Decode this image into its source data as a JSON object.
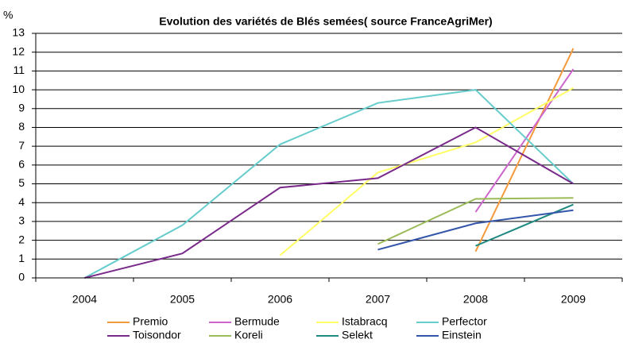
{
  "chart_data": {
    "type": "line",
    "title": "Evolution des  variétés de Blés semées( source FranceAgriMer)",
    "y_label": "%",
    "categories": [
      "2004",
      "2005",
      "2006",
      "2007",
      "2008",
      "2009"
    ],
    "series": [
      {
        "name": "Premio",
        "color": "#f59a3c",
        "values": [
          null,
          null,
          null,
          null,
          1.4,
          12.2
        ]
      },
      {
        "name": "Bermude",
        "color": "#cc66cc",
        "values": [
          null,
          null,
          null,
          null,
          3.5,
          11.1
        ]
      },
      {
        "name": "Istabracq",
        "color": "#ffff66",
        "values": [
          null,
          null,
          1.2,
          5.6,
          7.2,
          10.1
        ]
      },
      {
        "name": "Perfector",
        "color": "#66cccc",
        "values": [
          0,
          2.8,
          7.1,
          9.3,
          10.0,
          5.0
        ]
      },
      {
        "name": "Toisondor",
        "color": "#7a2a8a",
        "values": [
          0,
          1.3,
          4.8,
          5.3,
          8.0,
          5.0
        ]
      },
      {
        "name": "Koreli",
        "color": "#9bbb59",
        "values": [
          null,
          null,
          null,
          1.8,
          4.2,
          4.25
        ]
      },
      {
        "name": "Selekt",
        "color": "#1f8a80",
        "values": [
          null,
          null,
          null,
          null,
          1.7,
          3.9
        ]
      },
      {
        "name": "Einstein",
        "color": "#3355aa",
        "values": [
          null,
          null,
          null,
          1.5,
          2.9,
          3.6
        ]
      }
    ],
    "ylim": [
      0,
      13
    ],
    "yticks": [
      0,
      1,
      2,
      3,
      4,
      5,
      6,
      7,
      8,
      9,
      10,
      11,
      12,
      13
    ],
    "grid": true,
    "legend": "bottom"
  }
}
